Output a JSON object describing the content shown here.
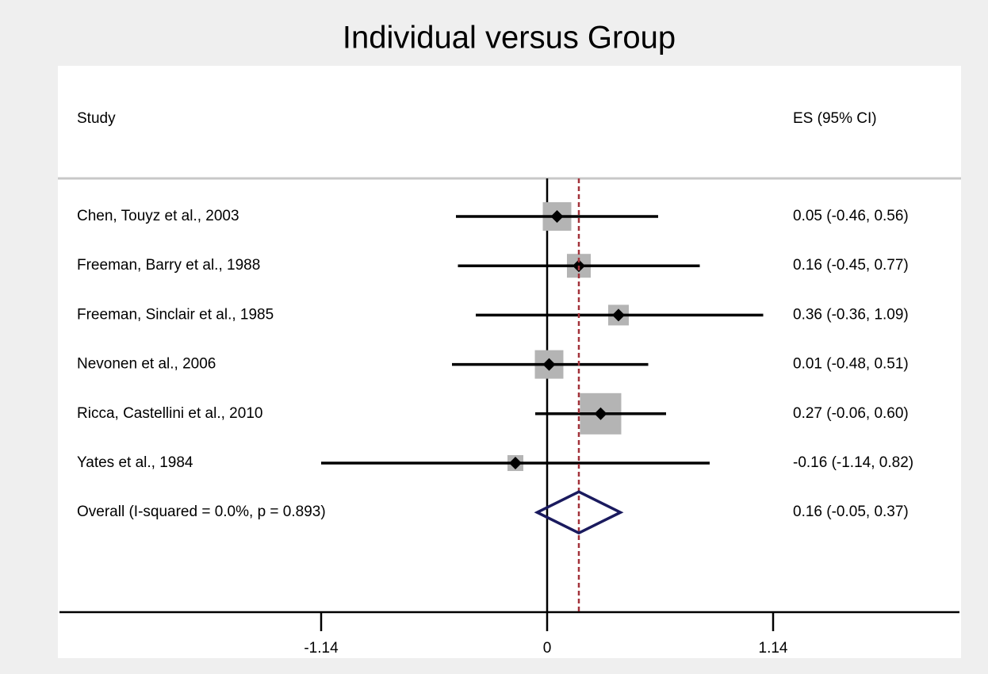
{
  "chart_data": {
    "type": "forest",
    "title": "Individual versus Group",
    "study_header": "Study",
    "es_header": "ES (95% CI)",
    "categories": [
      "Chen, Touyz et al., 2003",
      "Freeman, Barry et al., 1988",
      "Freeman, Sinclair et al., 1985",
      "Nevonen et al., 2006",
      "Ricca, Castellini et al., 2010",
      "Yates et al., 1984"
    ],
    "values": [
      0.05,
      0.16,
      0.36,
      0.01,
      0.27,
      -0.16
    ],
    "lower": [
      -0.46,
      -0.45,
      -0.36,
      -0.48,
      -0.06,
      -1.14
    ],
    "upper": [
      0.56,
      0.77,
      1.09,
      0.51,
      0.6,
      0.82
    ],
    "weights": [
      17.8,
      12.4,
      9.3,
      17.8,
      37.2,
      5.5
    ],
    "value_labels": [
      "0.05 (-0.46, 0.56)",
      "0.16 (-0.45, 0.77)",
      "0.36 (-0.36, 1.09)",
      "0.01 (-0.48, 0.51)",
      "0.27 (-0.06, 0.60)",
      "-0.16 (-1.14, 0.82)"
    ],
    "overall": {
      "label": "Overall  (I-squared = 0.0%, p = 0.893)",
      "value": 0.16,
      "lower": -0.05,
      "upper": 0.37,
      "value_label": "0.16 (-0.05, 0.37)",
      "color": "#1a1a5e"
    },
    "box_color": "#b4b4b4",
    "marker_color": "#000000",
    "reference_line_color": "#a3323a",
    "xlim": [
      -2.46,
      2.08
    ],
    "xticks": [
      -1.14,
      0,
      1.14
    ]
  }
}
